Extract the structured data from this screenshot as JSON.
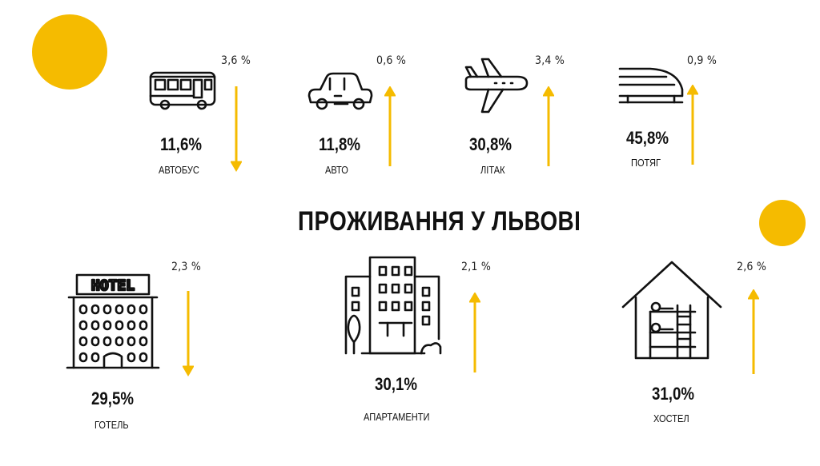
{
  "title": "ПРОЖИВАННЯ У ЛЬВОВІ",
  "colors": {
    "accent": "#f5bb00",
    "text": "#111111",
    "background": "#ffffff"
  },
  "transport": [
    {
      "icon": "bus-icon",
      "label": "АВТОБУС",
      "share": "11,6%",
      "change": "3,6 %",
      "direction": "down"
    },
    {
      "icon": "car-icon",
      "label": "АВТО",
      "share": "11,8%",
      "change": "0,6 %",
      "direction": "up"
    },
    {
      "icon": "plane-icon",
      "label": "ЛІТАК",
      "share": "30,8%",
      "change": "3,4 %",
      "direction": "up"
    },
    {
      "icon": "train-icon",
      "label": "ПОТЯГ",
      "share": "45,8%",
      "change": "0,9 %",
      "direction": "up"
    }
  ],
  "accommodation": [
    {
      "icon": "hotel-icon",
      "label": "ГОТЕЛЬ",
      "share": "29,5%",
      "change": "2,3 %",
      "direction": "down",
      "sign_text": "HOTEL"
    },
    {
      "icon": "apartments-icon",
      "label": "АПАРТАМЕНТИ",
      "share": "30,1%",
      "change": "2,1 %",
      "direction": "up"
    },
    {
      "icon": "hostel-icon",
      "label": "ХОСТЕЛ",
      "share": "31,0%",
      "change": "2,6 %",
      "direction": "up"
    }
  ]
}
